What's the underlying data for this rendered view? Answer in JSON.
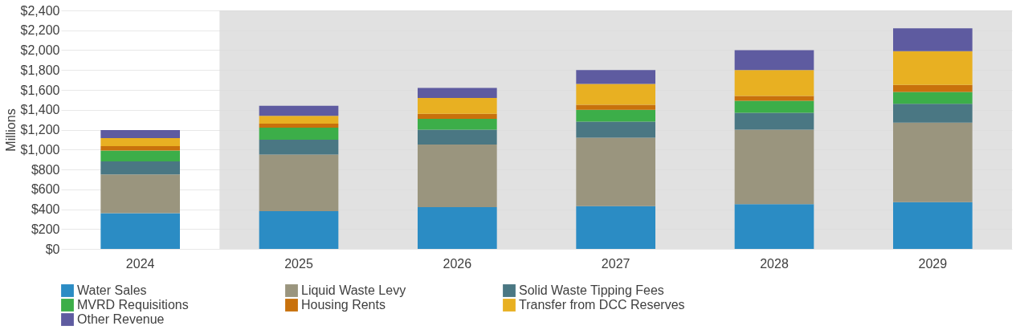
{
  "chart_data": {
    "type": "bar",
    "stacked": true,
    "ylabel": "Millions",
    "categories": [
      "2024",
      "2025",
      "2026",
      "2027",
      "2028",
      "2029"
    ],
    "series": [
      {
        "name": "Water Sales",
        "color": "#2b8cc4",
        "values": [
          360,
          380,
          420,
          430,
          450,
          470
        ]
      },
      {
        "name": "Liquid Waste Levy",
        "color": "#9a957e",
        "values": [
          390,
          570,
          630,
          690,
          750,
          800
        ]
      },
      {
        "name": "Solid Waste Tipping Fees",
        "color": "#4a7783",
        "values": [
          130,
          150,
          150,
          160,
          170,
          190
        ]
      },
      {
        "name": "MVRD Requisitions",
        "color": "#3cae49",
        "values": [
          110,
          120,
          110,
          120,
          120,
          120
        ]
      },
      {
        "name": "Housing Rents",
        "color": "#c8710c",
        "values": [
          45,
          40,
          50,
          50,
          50,
          70
        ]
      },
      {
        "name": "Transfer from DCC Reserves",
        "color": "#e8b022",
        "values": [
          80,
          80,
          160,
          210,
          260,
          340
        ]
      },
      {
        "name": "Other Revenue",
        "color": "#5e5ba0",
        "values": [
          80,
          100,
          100,
          140,
          200,
          230
        ]
      }
    ],
    "ylim": [
      0,
      2400
    ],
    "yticks": [
      {
        "value": 0,
        "label": "$0"
      },
      {
        "value": 200,
        "label": "$200"
      },
      {
        "value": 400,
        "label": "$400"
      },
      {
        "value": 600,
        "label": "$600"
      },
      {
        "value": 800,
        "label": "$800"
      },
      {
        "value": 1000,
        "label": "$1,000"
      },
      {
        "value": 1200,
        "label": "$1,200"
      },
      {
        "value": 1400,
        "label": "$1,400"
      },
      {
        "value": 1600,
        "label": "$1,600"
      },
      {
        "value": 1800,
        "label": "$1,800"
      },
      {
        "value": 2000,
        "label": "$2,000"
      },
      {
        "value": 2200,
        "label": "$2,200"
      },
      {
        "value": 2400,
        "label": "$2,400"
      }
    ],
    "bands": [
      {
        "axis": "x",
        "from": "2025",
        "to": "2029",
        "color": "#d9d9d9"
      }
    ],
    "grid": "y",
    "legend": "bottom"
  }
}
